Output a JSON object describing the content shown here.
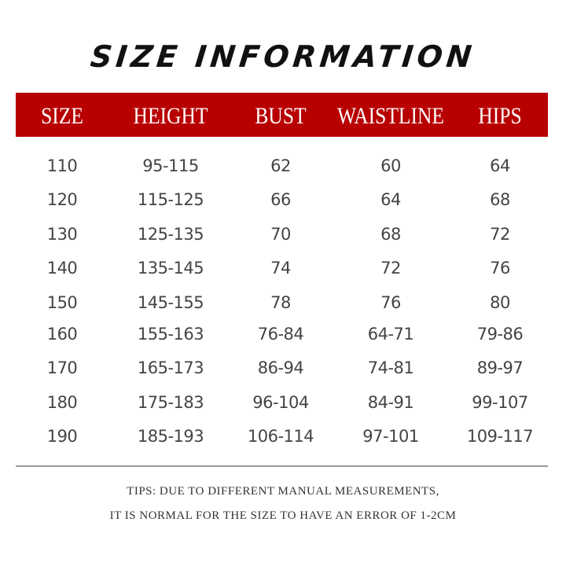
{
  "title": "SIZE INFORMATION",
  "header_color": "#b80000",
  "columns": [
    "SIZE",
    "HEIGHT",
    "BUST",
    "WAISTLINE",
    "HIPS"
  ],
  "rows": [
    [
      "110",
      "95-115",
      "62",
      "60",
      "64"
    ],
    [
      "120",
      "115-125",
      "66",
      "64",
      "68"
    ],
    [
      "130",
      "125-135",
      "70",
      "68",
      "72"
    ],
    [
      "140",
      "135-145",
      "74",
      "72",
      "76"
    ],
    [
      "150",
      "145-155",
      "78",
      "76",
      "80"
    ],
    [
      "160",
      "155-163",
      "76-84",
      "64-71",
      "79-86"
    ],
    [
      "170",
      "165-173",
      "86-94",
      "74-81",
      "89-97"
    ],
    [
      "180",
      "175-183",
      "96-104",
      "84-91",
      "99-107"
    ],
    [
      "190",
      "185-193",
      "106-114",
      "97-101",
      "109-117"
    ]
  ],
  "tips": [
    "TIPS: DUE TO DIFFERENT MANUAL MEASUREMENTS,",
    "IT IS NORMAL FOR THE SIZE TO HAVE AN ERROR OF 1-2CM"
  ]
}
